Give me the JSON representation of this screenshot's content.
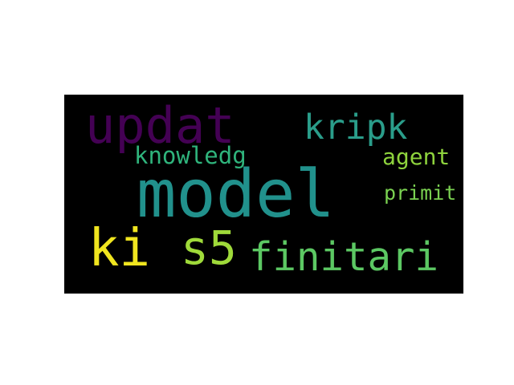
{
  "wordcloud": {
    "background": "#000000",
    "words": [
      {
        "key": "model",
        "text": "model",
        "color": "#21918c"
      },
      {
        "key": "updat",
        "text": "updat",
        "color": "#440154"
      },
      {
        "key": "kripk",
        "text": "kripk",
        "color": "#2a9d8a"
      },
      {
        "key": "knowledg",
        "text": "knowledg",
        "color": "#2fb47c"
      },
      {
        "key": "agent",
        "text": "agent",
        "color": "#8ed33d"
      },
      {
        "key": "primit",
        "text": "primit",
        "color": "#7ad151"
      },
      {
        "key": "ki",
        "text": "ki",
        "color": "#f0e51f"
      },
      {
        "key": "s5",
        "text": "s5",
        "color": "#9fda3a"
      },
      {
        "key": "finitari",
        "text": "finitari",
        "color": "#5cc863"
      }
    ]
  }
}
